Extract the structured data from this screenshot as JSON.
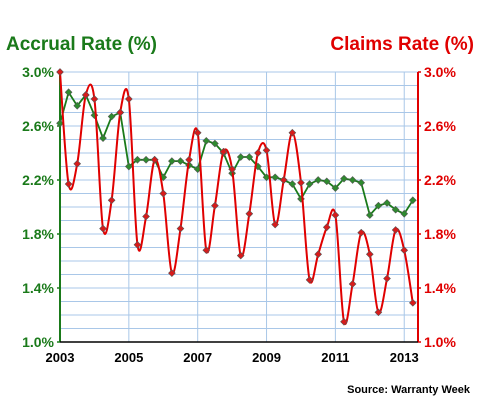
{
  "chart_data": {
    "type": "line",
    "title_left": "Accrual Rate (%)",
    "title_right": "Claims Rate (%)",
    "source": "Source: Warranty Week",
    "ylim": [
      1.0,
      3.0
    ],
    "y_ticks": [
      "1.0%",
      "1.4%",
      "1.8%",
      "2.2%",
      "2.6%",
      "3.0%"
    ],
    "x_range": [
      2003.0,
      2013.4
    ],
    "x_ticks": [
      "2003",
      "2005",
      "2007",
      "2009",
      "2011",
      "2013"
    ],
    "grid": true,
    "colors": {
      "accrual": "#1a7a1a",
      "accrual_marker": "#2e8b2e",
      "claims": "#e00000",
      "claims_marker": "#d81b1b",
      "grid": "#a9c7e8"
    },
    "series": [
      {
        "key": "accrual",
        "axis": "left",
        "x": [
          2003.0,
          2003.25,
          2003.5,
          2003.75,
          2004.0,
          2004.25,
          2004.5,
          2004.75,
          2005.0,
          2005.25,
          2005.5,
          2005.75,
          2006.0,
          2006.25,
          2006.5,
          2006.75,
          2007.0,
          2007.25,
          2007.5,
          2007.75,
          2008.0,
          2008.25,
          2008.5,
          2008.75,
          2009.0,
          2009.25,
          2009.5,
          2009.75,
          2010.0,
          2010.25,
          2010.5,
          2010.75,
          2011.0,
          2011.25,
          2011.5,
          2011.75,
          2012.0,
          2012.25,
          2012.5,
          2012.75,
          2013.0,
          2013.25
        ],
        "values": [
          2.62,
          2.85,
          2.75,
          2.83,
          2.68,
          2.51,
          2.67,
          2.7,
          2.3,
          2.35,
          2.35,
          2.35,
          2.22,
          2.34,
          2.34,
          2.31,
          2.28,
          2.49,
          2.47,
          2.4,
          2.25,
          2.37,
          2.37,
          2.3,
          2.22,
          2.22,
          2.2,
          2.17,
          2.06,
          2.17,
          2.2,
          2.19,
          2.14,
          2.21,
          2.2,
          2.18,
          1.94,
          2.01,
          2.03,
          1.98,
          1.95,
          2.05
        ]
      },
      {
        "key": "claims",
        "axis": "right",
        "x": [
          2003.0,
          2003.25,
          2003.5,
          2003.75,
          2004.0,
          2004.25,
          2004.5,
          2004.75,
          2005.0,
          2005.25,
          2005.5,
          2005.75,
          2006.0,
          2006.25,
          2006.5,
          2006.75,
          2007.0,
          2007.25,
          2007.5,
          2007.75,
          2008.0,
          2008.25,
          2008.5,
          2008.75,
          2009.0,
          2009.25,
          2009.5,
          2009.75,
          2010.0,
          2010.25,
          2010.5,
          2010.75,
          2011.0,
          2011.25,
          2011.5,
          2011.75,
          2012.0,
          2012.25,
          2012.5,
          2012.75,
          2013.0,
          2013.25
        ],
        "values": [
          3.0,
          2.17,
          2.32,
          2.83,
          2.8,
          1.84,
          2.05,
          2.7,
          2.8,
          1.72,
          1.93,
          2.35,
          2.1,
          1.51,
          1.84,
          2.35,
          2.55,
          1.68,
          2.01,
          2.41,
          2.28,
          1.64,
          1.95,
          2.4,
          2.42,
          1.87,
          2.2,
          2.55,
          2.18,
          1.46,
          1.65,
          1.85,
          1.94,
          1.15,
          1.43,
          1.81,
          1.65,
          1.22,
          1.47,
          1.83,
          1.68,
          1.29
        ]
      }
    ]
  }
}
